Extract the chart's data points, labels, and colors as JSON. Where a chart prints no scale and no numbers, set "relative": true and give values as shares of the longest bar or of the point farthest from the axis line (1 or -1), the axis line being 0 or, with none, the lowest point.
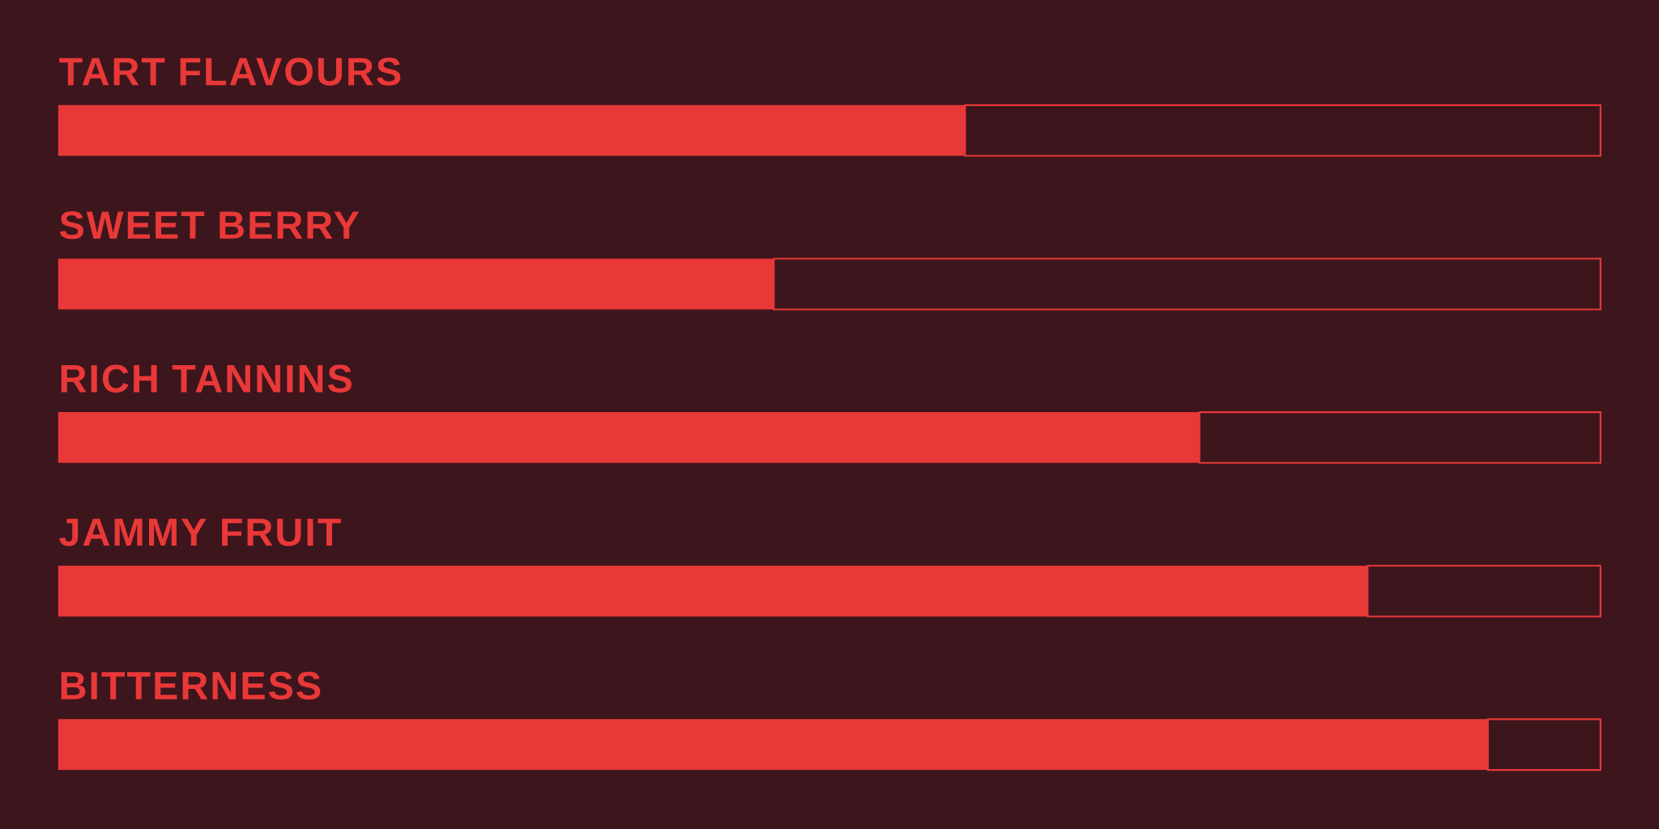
{
  "chart_data": {
    "type": "bar",
    "orientation": "horizontal",
    "relative": true,
    "stacked": true,
    "categories": [
      "TART FLAVOURS",
      "SWEET BERRY",
      "RICH TANNINS",
      "JAMMY FRUIT",
      "BITTERNESS"
    ],
    "series": [
      {
        "color": "#e83838",
        "values": [
          0.588,
          0.464,
          0.74,
          0.849,
          0.927
        ]
      },
      {
        "color": "#3d151c",
        "values": [
          0.412,
          0.536,
          0.26,
          0.151,
          0.073
        ]
      }
    ]
  }
}
